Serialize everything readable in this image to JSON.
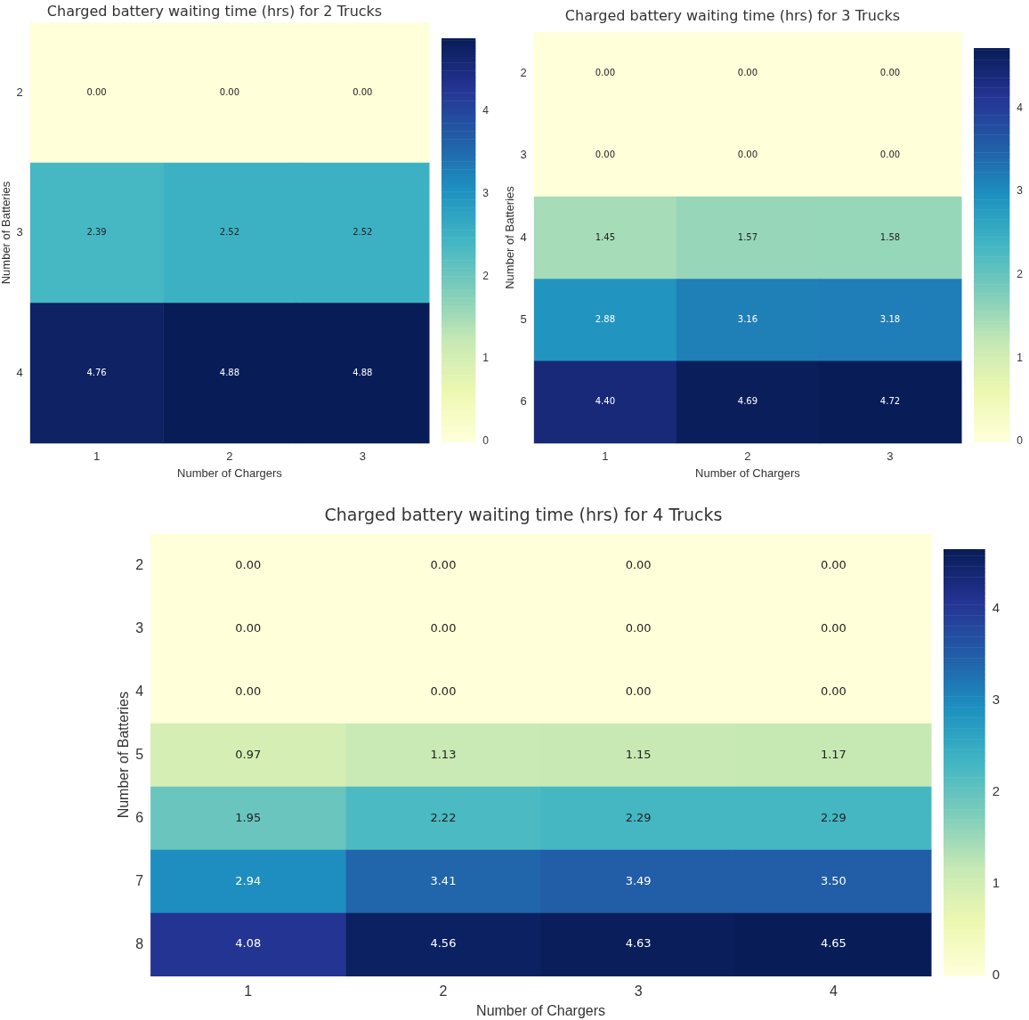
{
  "chart_data": [
    {
      "type": "heatmap",
      "title": "Charged battery waiting time (hrs) for 2 Trucks",
      "xlabel": "Number of Chargers",
      "ylabel": "Number of Batteries",
      "categories": [
        "1",
        "2",
        "3"
      ],
      "y_categories": [
        "2",
        "3",
        "4"
      ],
      "cells": [
        [
          0,
          0,
          0
        ],
        [
          2.39,
          2.52,
          2.52
        ],
        [
          4.76,
          4.88,
          4.88
        ]
      ],
      "cell_labels": [
        [
          "0.00",
          "0.00",
          "0.00"
        ],
        [
          "2.39",
          "2.52",
          "2.52"
        ],
        [
          "4.76",
          "4.88",
          "4.88"
        ]
      ],
      "clim": [
        0,
        4.88
      ],
      "cticks": [
        0,
        1,
        2,
        3,
        4
      ]
    },
    {
      "type": "heatmap",
      "title": "Charged battery waiting time (hrs) for 3 Trucks",
      "xlabel": "Number of Chargers",
      "ylabel": "Number of Batteries",
      "categories": [
        "1",
        "2",
        "3"
      ],
      "y_categories": [
        "2",
        "3",
        "4",
        "5",
        "6"
      ],
      "cells": [
        [
          0,
          0,
          0
        ],
        [
          0,
          0,
          0
        ],
        [
          1.45,
          1.57,
          1.58
        ],
        [
          2.88,
          3.16,
          3.18
        ],
        [
          4.4,
          4.69,
          4.72
        ]
      ],
      "cell_labels": [
        [
          "0.00",
          "0.00",
          "0.00"
        ],
        [
          "0.00",
          "0.00",
          "0.00"
        ],
        [
          "1.45",
          "1.57",
          "1.58"
        ],
        [
          "2.88",
          "3.16",
          "3.18"
        ],
        [
          "4.40",
          "4.69",
          "4.72"
        ]
      ],
      "clim": [
        0,
        4.72
      ],
      "cticks": [
        0,
        1,
        2,
        3,
        4
      ]
    },
    {
      "type": "heatmap",
      "title": "Charged battery waiting time (hrs) for 4 Trucks",
      "xlabel": "Number of Chargers",
      "ylabel": "Number of Batteries",
      "categories": [
        "1",
        "2",
        "3",
        "4"
      ],
      "y_categories": [
        "2",
        "3",
        "4",
        "5",
        "6",
        "7",
        "8"
      ],
      "cells": [
        [
          0,
          0,
          0,
          0
        ],
        [
          0,
          0,
          0,
          0
        ],
        [
          0,
          0,
          0,
          0
        ],
        [
          0.97,
          1.13,
          1.15,
          1.17
        ],
        [
          1.95,
          2.22,
          2.29,
          2.29
        ],
        [
          2.94,
          3.41,
          3.49,
          3.5
        ],
        [
          4.08,
          4.56,
          4.63,
          4.65
        ]
      ],
      "cell_labels": [
        [
          "0.00",
          "0.00",
          "0.00",
          "0.00"
        ],
        [
          "0.00",
          "0.00",
          "0.00",
          "0.00"
        ],
        [
          "0.00",
          "0.00",
          "0.00",
          "0.00"
        ],
        [
          "0.97",
          "1.13",
          "1.15",
          "1.17"
        ],
        [
          "1.95",
          "2.22",
          "2.29",
          "2.29"
        ],
        [
          "2.94",
          "3.41",
          "3.49",
          "3.50"
        ],
        [
          "4.08",
          "4.56",
          "4.63",
          "4.65"
        ]
      ],
      "clim": [
        0,
        4.65
      ],
      "cticks": [
        0,
        1,
        2,
        3,
        4
      ]
    }
  ]
}
